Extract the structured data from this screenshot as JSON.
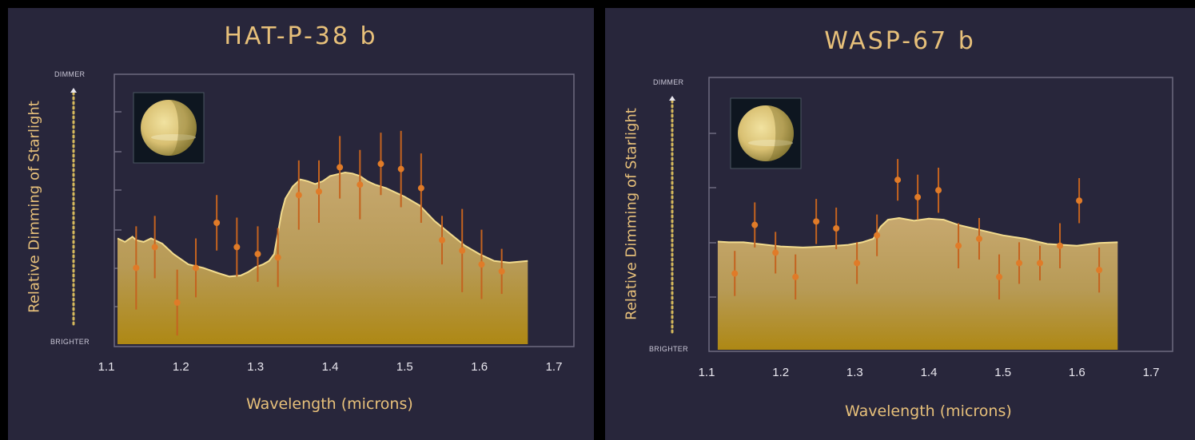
{
  "chart_data": [
    {
      "type": "area",
      "title": "HAT-P-38 b",
      "xlabel": "Wavelength (microns)",
      "ylabel": "Relative Dimming of Starlight",
      "y_top_label": "DIMMER",
      "y_bottom_label": "BRIGHTER",
      "xlim": [
        1.1,
        1.7
      ],
      "xticks": [
        "1.1",
        "1.2",
        "1.3",
        "1.4",
        "1.5",
        "1.6",
        "1.7"
      ],
      "ylim": [
        0,
        7
      ],
      "grid": false,
      "model": {
        "x": [
          1.115,
          1.125,
          1.135,
          1.14,
          1.15,
          1.16,
          1.175,
          1.19,
          1.21,
          1.23,
          1.25,
          1.265,
          1.28,
          1.29,
          1.3,
          1.31,
          1.318,
          1.325,
          1.33,
          1.335,
          1.34,
          1.35,
          1.36,
          1.37,
          1.38,
          1.39,
          1.4,
          1.41,
          1.42,
          1.43,
          1.44,
          1.45,
          1.46,
          1.475,
          1.5,
          1.52,
          1.54,
          1.56,
          1.58,
          1.6,
          1.62,
          1.64,
          1.665
        ],
        "y": [
          3.05,
          2.95,
          3.1,
          3.0,
          2.95,
          3.05,
          2.9,
          2.6,
          2.3,
          2.2,
          2.05,
          1.95,
          1.98,
          2.08,
          2.22,
          2.3,
          2.4,
          2.6,
          3.2,
          3.8,
          4.2,
          4.55,
          4.75,
          4.7,
          4.62,
          4.7,
          4.85,
          4.9,
          4.95,
          4.92,
          4.85,
          4.7,
          4.6,
          4.5,
          4.25,
          4.0,
          3.55,
          3.2,
          2.85,
          2.6,
          2.4,
          2.35,
          2.4
        ]
      },
      "measurements": {
        "x": [
          1.14,
          1.165,
          1.195,
          1.22,
          1.248,
          1.275,
          1.303,
          1.33,
          1.358,
          1.385,
          1.413,
          1.44,
          1.468,
          1.495,
          1.522,
          1.55,
          1.577,
          1.603,
          1.63
        ],
        "y": [
          2.2,
          2.8,
          1.2,
          2.2,
          3.5,
          2.8,
          2.6,
          2.5,
          4.3,
          4.4,
          5.1,
          4.6,
          5.2,
          5.05,
          4.5,
          3.0,
          2.7,
          2.3,
          2.1
        ],
        "err": [
          1.2,
          0.9,
          0.95,
          0.85,
          0.8,
          0.85,
          0.8,
          0.85,
          1.0,
          0.9,
          0.9,
          1.0,
          0.9,
          1.1,
          1.0,
          0.7,
          1.2,
          1.0,
          0.65
        ]
      }
    },
    {
      "type": "area",
      "title": "WASP-67 b",
      "xlabel": "Wavelength (microns)",
      "ylabel": "Relative Dimming of Starlight",
      "y_top_label": "DIMMER",
      "y_bottom_label": "BRIGHTER",
      "xlim": [
        1.1,
        1.7
      ],
      "xticks": [
        "1.1",
        "1.2",
        "1.3",
        "1.4",
        "1.5",
        "1.6",
        "1.7"
      ],
      "ylim": [
        0,
        7
      ],
      "grid": false,
      "model": {
        "x": [
          1.115,
          1.13,
          1.15,
          1.17,
          1.2,
          1.23,
          1.26,
          1.29,
          1.31,
          1.325,
          1.335,
          1.345,
          1.36,
          1.38,
          1.4,
          1.42,
          1.44,
          1.47,
          1.5,
          1.53,
          1.56,
          1.6,
          1.63,
          1.655
        ],
        "y": [
          3.12,
          3.1,
          3.1,
          3.05,
          2.98,
          2.95,
          2.98,
          3.02,
          3.1,
          3.2,
          3.55,
          3.75,
          3.8,
          3.72,
          3.78,
          3.75,
          3.6,
          3.45,
          3.3,
          3.2,
          3.05,
          3.0,
          3.08,
          3.1
        ]
      },
      "measurements": {
        "x": [
          1.138,
          1.165,
          1.193,
          1.22,
          1.248,
          1.275,
          1.303,
          1.33,
          1.358,
          1.385,
          1.413,
          1.44,
          1.468,
          1.495,
          1.522,
          1.55,
          1.577,
          1.603,
          1.63
        ],
        "y": [
          2.2,
          3.6,
          2.8,
          2.1,
          3.7,
          3.5,
          2.5,
          3.3,
          4.9,
          4.4,
          4.6,
          3.0,
          3.2,
          2.1,
          2.5,
          2.5,
          3.0,
          4.3,
          2.3
        ],
        "err": [
          0.65,
          0.65,
          0.6,
          0.65,
          0.65,
          0.6,
          0.6,
          0.6,
          0.6,
          0.65,
          0.65,
          0.65,
          0.6,
          0.65,
          0.6,
          0.5,
          0.65,
          0.65,
          0.65
        ]
      }
    }
  ]
}
